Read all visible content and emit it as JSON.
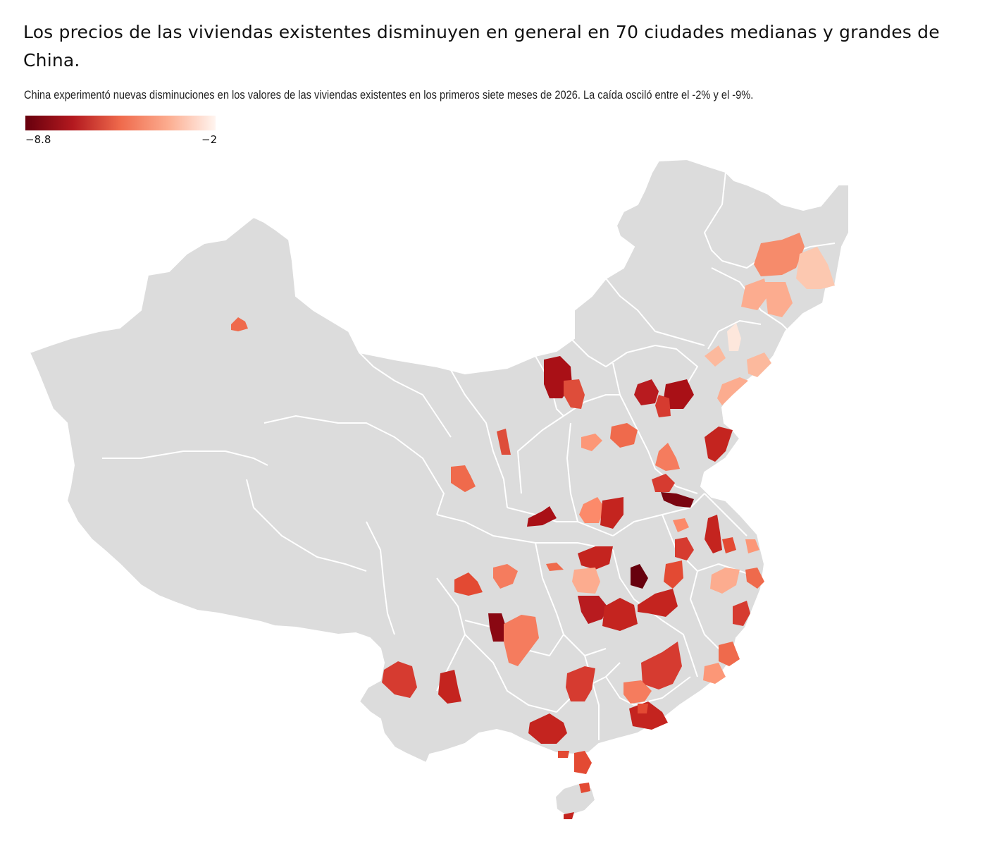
{
  "header": {
    "title": "Los precios de las viviendas existentes disminuyen en general en 70 ciudades medianas y grandes de China.",
    "subtitle": "China experimentó nuevas disminuciones en los valores de las viviendas existentes en los primeros siete meses de 2026. La caída osciló entre el -2% y el -9%."
  },
  "legend": {
    "min_label": "−8.8",
    "max_label": "−2",
    "min_value": -8.8,
    "max_value": -2,
    "color_dark": "#67000d",
    "color_mid": "#ef6a4c",
    "color_light": "#fff5f0"
  },
  "map": {
    "land_color": "#dcdcdc",
    "border_color": "#ffffff"
  }
}
